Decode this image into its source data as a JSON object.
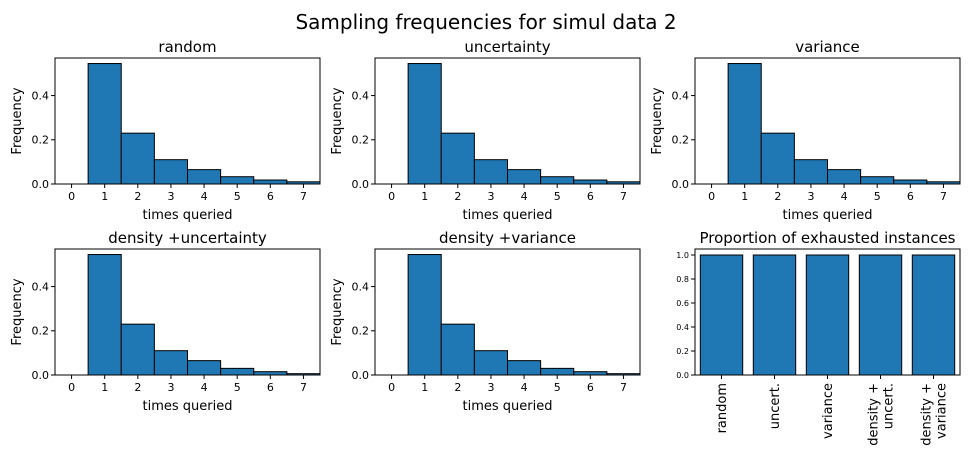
{
  "figure": {
    "title": "Sampling frequencies for simul data 2"
  },
  "colors": {
    "bar": "#1f77b4",
    "edge": "#000000"
  },
  "chart_data": [
    {
      "type": "bar",
      "title": "random",
      "xlabel": "times queried",
      "ylabel": "Frequency",
      "x": [
        1,
        2,
        3,
        4,
        5,
        6,
        7
      ],
      "values": [
        0.545,
        0.23,
        0.11,
        0.065,
        0.033,
        0.018,
        0.01
      ],
      "xticks": [
        "0",
        "1",
        "2",
        "3",
        "4",
        "5",
        "6",
        "7"
      ],
      "yticks": [
        "0.0",
        "0.2",
        "0.4"
      ],
      "xlim": [
        -0.5,
        7.5
      ],
      "ylim": [
        0,
        0.57
      ]
    },
    {
      "type": "bar",
      "title": "uncertainty",
      "xlabel": "times queried",
      "ylabel": "Frequency",
      "x": [
        1,
        2,
        3,
        4,
        5,
        6,
        7
      ],
      "values": [
        0.545,
        0.23,
        0.11,
        0.065,
        0.033,
        0.018,
        0.01
      ],
      "xticks": [
        "0",
        "1",
        "2",
        "3",
        "4",
        "5",
        "6",
        "7"
      ],
      "yticks": [
        "0.0",
        "0.2",
        "0.4"
      ],
      "xlim": [
        -0.5,
        7.5
      ],
      "ylim": [
        0,
        0.57
      ]
    },
    {
      "type": "bar",
      "title": "variance",
      "xlabel": "times queried",
      "ylabel": "Frequency",
      "x": [
        1,
        2,
        3,
        4,
        5,
        6,
        7
      ],
      "values": [
        0.545,
        0.23,
        0.11,
        0.065,
        0.033,
        0.018,
        0.01
      ],
      "xticks": [
        "0",
        "1",
        "2",
        "3",
        "4",
        "5",
        "6",
        "7"
      ],
      "yticks": [
        "0.0",
        "0.2",
        "0.4"
      ],
      "xlim": [
        -0.5,
        7.5
      ],
      "ylim": [
        0,
        0.57
      ]
    },
    {
      "type": "bar",
      "title": "density +uncertainty",
      "xlabel": "times queried",
      "ylabel": "Frequency",
      "x": [
        1,
        2,
        3,
        4,
        5,
        6,
        7
      ],
      "values": [
        0.545,
        0.23,
        0.11,
        0.065,
        0.03,
        0.015,
        0.006
      ],
      "xticks": [
        "0",
        "1",
        "2",
        "3",
        "4",
        "5",
        "6",
        "7"
      ],
      "yticks": [
        "0.0",
        "0.2",
        "0.4"
      ],
      "xlim": [
        -0.5,
        7.5
      ],
      "ylim": [
        0,
        0.57
      ]
    },
    {
      "type": "bar",
      "title": "density +variance",
      "xlabel": "times queried",
      "ylabel": "Frequency",
      "x": [
        1,
        2,
        3,
        4,
        5,
        6,
        7
      ],
      "values": [
        0.545,
        0.23,
        0.11,
        0.065,
        0.03,
        0.015,
        0.006
      ],
      "xticks": [
        "0",
        "1",
        "2",
        "3",
        "4",
        "5",
        "6",
        "7"
      ],
      "yticks": [
        "0.0",
        "0.2",
        "0.4"
      ],
      "xlim": [
        -0.5,
        7.5
      ],
      "ylim": [
        0,
        0.57
      ]
    },
    {
      "type": "bar",
      "title": "Proportion of exhausted instances",
      "xlabel": "",
      "ylabel": "",
      "categories": [
        "random",
        "uncert.",
        "variance",
        "density +\nuncert.",
        "density +\nvariance"
      ],
      "values": [
        1.0,
        1.0,
        1.0,
        1.0,
        1.0
      ],
      "yticks": [
        "0.0",
        "0.2",
        "0.4",
        "0.6",
        "0.8",
        "1.0"
      ],
      "xlim": [
        -0.5,
        4.5
      ],
      "ylim": [
        0,
        1.05
      ]
    }
  ]
}
